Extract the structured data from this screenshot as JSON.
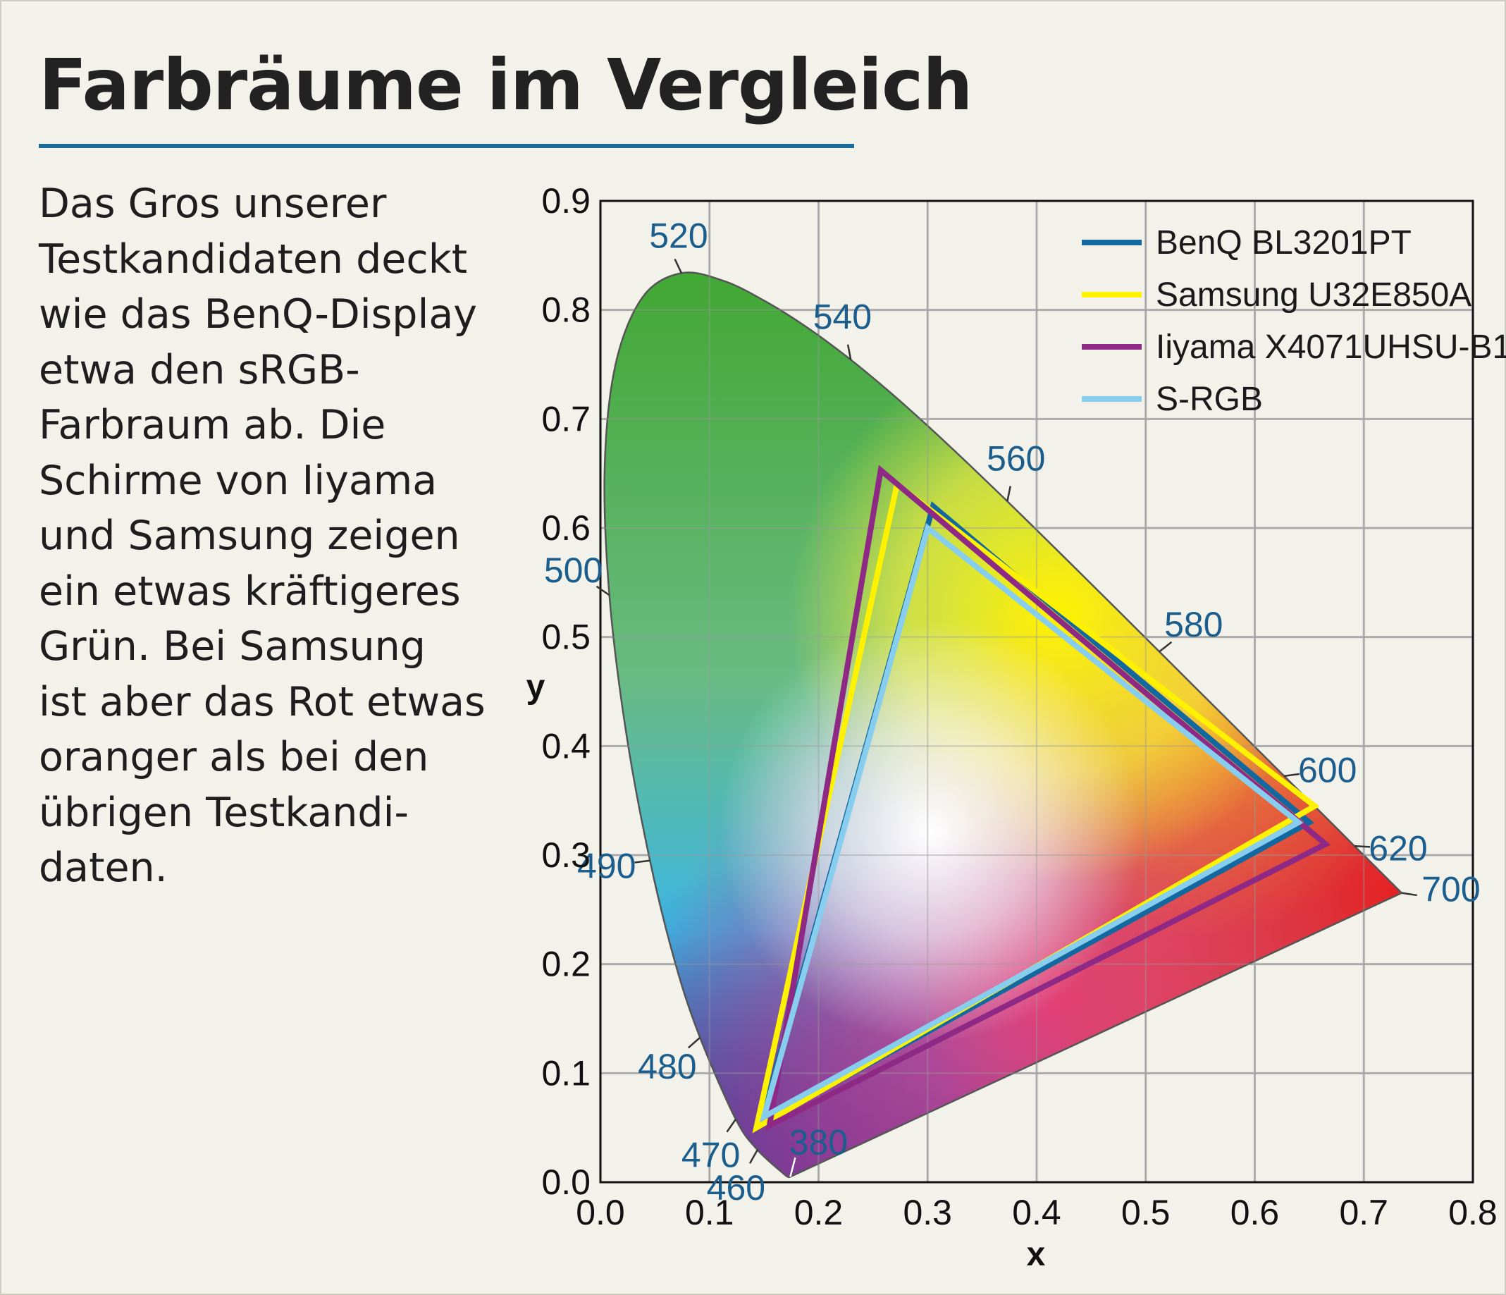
{
  "title": "Farbräume im Vergleich",
  "description_lines": [
    "Das Gros unserer",
    "Testkandidaten deckt",
    "wie das BenQ-Display",
    "etwa den sRGB-",
    "Farbraum ab. Die",
    "Schirme von Iiyama",
    "und Samsung zeigen",
    "ein etwas kräftigeres",
    "Grün. Bei Samsung",
    "ist aber das Rot etwas",
    "oranger als bei den",
    "übrigen Testkandi-",
    "daten."
  ],
  "chart_data": {
    "type": "scatter",
    "xlabel": "x",
    "ylabel": "y",
    "xlim": [
      0.0,
      0.8
    ],
    "ylim": [
      0.0,
      0.9
    ],
    "x_ticks": [
      "0.0",
      "0.1",
      "0.2",
      "0.3",
      "0.4",
      "0.5",
      "0.6",
      "0.7",
      "0.8"
    ],
    "y_ticks": [
      "0.0",
      "0.1",
      "0.2",
      "0.3",
      "0.4",
      "0.5",
      "0.6",
      "0.7",
      "0.8",
      "0.9"
    ],
    "grid": true,
    "legend_position": "top-right",
    "spectral_locus": [
      [
        0.1741,
        0.005
      ],
      [
        0.1721,
        0.0048
      ],
      [
        0.1666,
        0.0089
      ],
      [
        0.144,
        0.0297
      ],
      [
        0.1241,
        0.0578
      ],
      [
        0.0913,
        0.1327
      ],
      [
        0.0687,
        0.2007
      ],
      [
        0.0454,
        0.295
      ],
      [
        0.0235,
        0.4127
      ],
      [
        0.0082,
        0.5384
      ],
      [
        0.0039,
        0.6548
      ],
      [
        0.0139,
        0.7502
      ],
      [
        0.0389,
        0.812
      ],
      [
        0.0743,
        0.8338
      ],
      [
        0.1142,
        0.8262
      ],
      [
        0.1547,
        0.8059
      ],
      [
        0.1929,
        0.7816
      ],
      [
        0.2296,
        0.7543
      ],
      [
        0.2658,
        0.7243
      ],
      [
        0.3016,
        0.6923
      ],
      [
        0.3373,
        0.6589
      ],
      [
        0.3731,
        0.6245
      ],
      [
        0.4087,
        0.5896
      ],
      [
        0.4441,
        0.5547
      ],
      [
        0.4788,
        0.5202
      ],
      [
        0.5125,
        0.4866
      ],
      [
        0.5448,
        0.4544
      ],
      [
        0.5752,
        0.4242
      ],
      [
        0.6029,
        0.3965
      ],
      [
        0.627,
        0.3725
      ],
      [
        0.6482,
        0.3514
      ],
      [
        0.6658,
        0.334
      ],
      [
        0.6801,
        0.3197
      ],
      [
        0.6915,
        0.3083
      ],
      [
        0.7006,
        0.2993
      ],
      [
        0.7079,
        0.292
      ],
      [
        0.714,
        0.2859
      ],
      [
        0.719,
        0.2809
      ],
      [
        0.7347,
        0.2653
      ]
    ],
    "wavelength_labels": [
      {
        "label": "520",
        "x": 0.0743,
        "y": 0.8338
      },
      {
        "label": "540",
        "x": 0.2296,
        "y": 0.7543
      },
      {
        "label": "560",
        "x": 0.3731,
        "y": 0.6245
      },
      {
        "label": "580",
        "x": 0.5125,
        "y": 0.4866
      },
      {
        "label": "600",
        "x": 0.627,
        "y": 0.3725
      },
      {
        "label": "620",
        "x": 0.6915,
        "y": 0.3083
      },
      {
        "label": "700",
        "x": 0.7347,
        "y": 0.2653
      },
      {
        "label": "500",
        "x": 0.0082,
        "y": 0.5384
      },
      {
        "label": "490",
        "x": 0.0454,
        "y": 0.295
      },
      {
        "label": "480",
        "x": 0.0913,
        "y": 0.1327
      },
      {
        "label": "470",
        "x": 0.1241,
        "y": 0.0578
      },
      {
        "label": "460",
        "x": 0.144,
        "y": 0.0297
      },
      {
        "label": "380",
        "x": 0.1741,
        "y": 0.005
      }
    ],
    "series": [
      {
        "name": "BenQ BL3201PT",
        "color": "#1468a0",
        "points": [
          [
            0.65,
            0.33
          ],
          [
            0.305,
            0.62
          ],
          [
            0.147,
            0.054
          ]
        ]
      },
      {
        "name": "Samsung U32E850A",
        "color": "#fff200",
        "points": [
          [
            0.655,
            0.345
          ],
          [
            0.272,
            0.64
          ],
          [
            0.143,
            0.05
          ]
        ]
      },
      {
        "name": "Iiyama X4071UHSU-B1",
        "color": "#8e2a86",
        "points": [
          [
            0.665,
            0.31
          ],
          [
            0.257,
            0.653
          ],
          [
            0.155,
            0.052
          ]
        ]
      },
      {
        "name": "S-RGB",
        "color": "#87cdee",
        "points": [
          [
            0.64,
            0.33
          ],
          [
            0.3,
            0.6
          ],
          [
            0.15,
            0.06
          ]
        ]
      }
    ]
  }
}
